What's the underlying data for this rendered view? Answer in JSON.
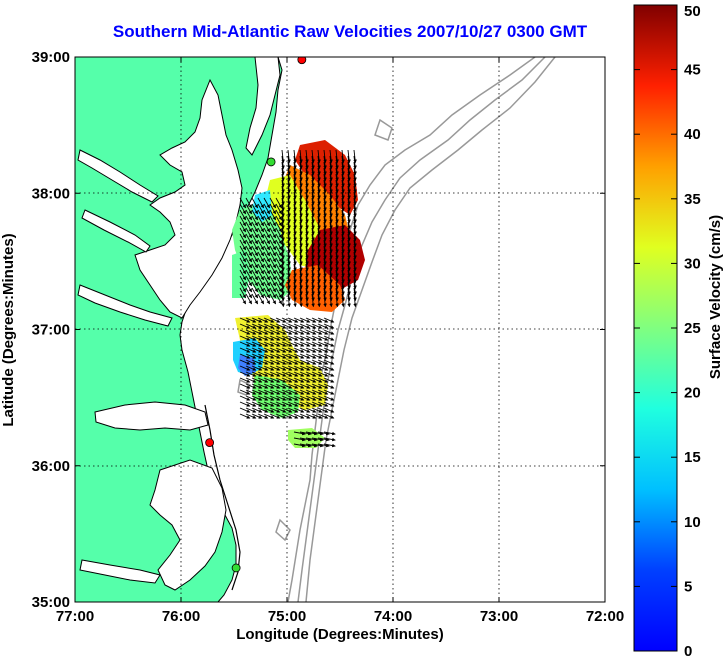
{
  "title": "Southern Mid-Atlantic Raw Velocities 2007/10/27 0300 GMT",
  "map": {
    "xlabel": "Longitude (Degrees:Minutes)",
    "ylabel": "Latitude (Degrees:Minutes)",
    "lon_range": [
      -77,
      -72
    ],
    "lat_range": [
      35,
      39
    ],
    "lon_ticks": [
      {
        "value": -77,
        "label": "77:00"
      },
      {
        "value": -76,
        "label": "76:00"
      },
      {
        "value": -75,
        "label": "75:00"
      },
      {
        "value": -74,
        "label": "74:00"
      },
      {
        "value": -73,
        "label": "73:00"
      },
      {
        "value": -72,
        "label": "72:00"
      }
    ],
    "lat_ticks": [
      {
        "value": 39,
        "label": "39:00"
      },
      {
        "value": 38,
        "label": "38:00"
      },
      {
        "value": 37,
        "label": "37:00"
      },
      {
        "value": 36,
        "label": "36:00"
      },
      {
        "value": 35,
        "label": "35:00"
      }
    ],
    "grid": "dotted",
    "land_color": "#55ffaa",
    "coast_color": "#000000",
    "bathy_color": "#999999",
    "stations": [
      {
        "lon": -74.86,
        "lat": 38.98,
        "color": "#ff0000"
      },
      {
        "lon": -75.15,
        "lat": 38.23,
        "color": "#33dd33"
      },
      {
        "lon": -75.73,
        "lat": 36.17,
        "color": "#ff0000"
      },
      {
        "lon": -75.48,
        "lat": 35.25,
        "color": "#33dd33"
      }
    ]
  },
  "colorbar": {
    "label": "Surface Velocity (cm/s)",
    "min": 0,
    "max": 50,
    "ticks": [
      "0",
      "5",
      "10",
      "15",
      "20",
      "25",
      "30",
      "35",
      "40",
      "45",
      "50"
    ],
    "colormap": "jet"
  }
}
